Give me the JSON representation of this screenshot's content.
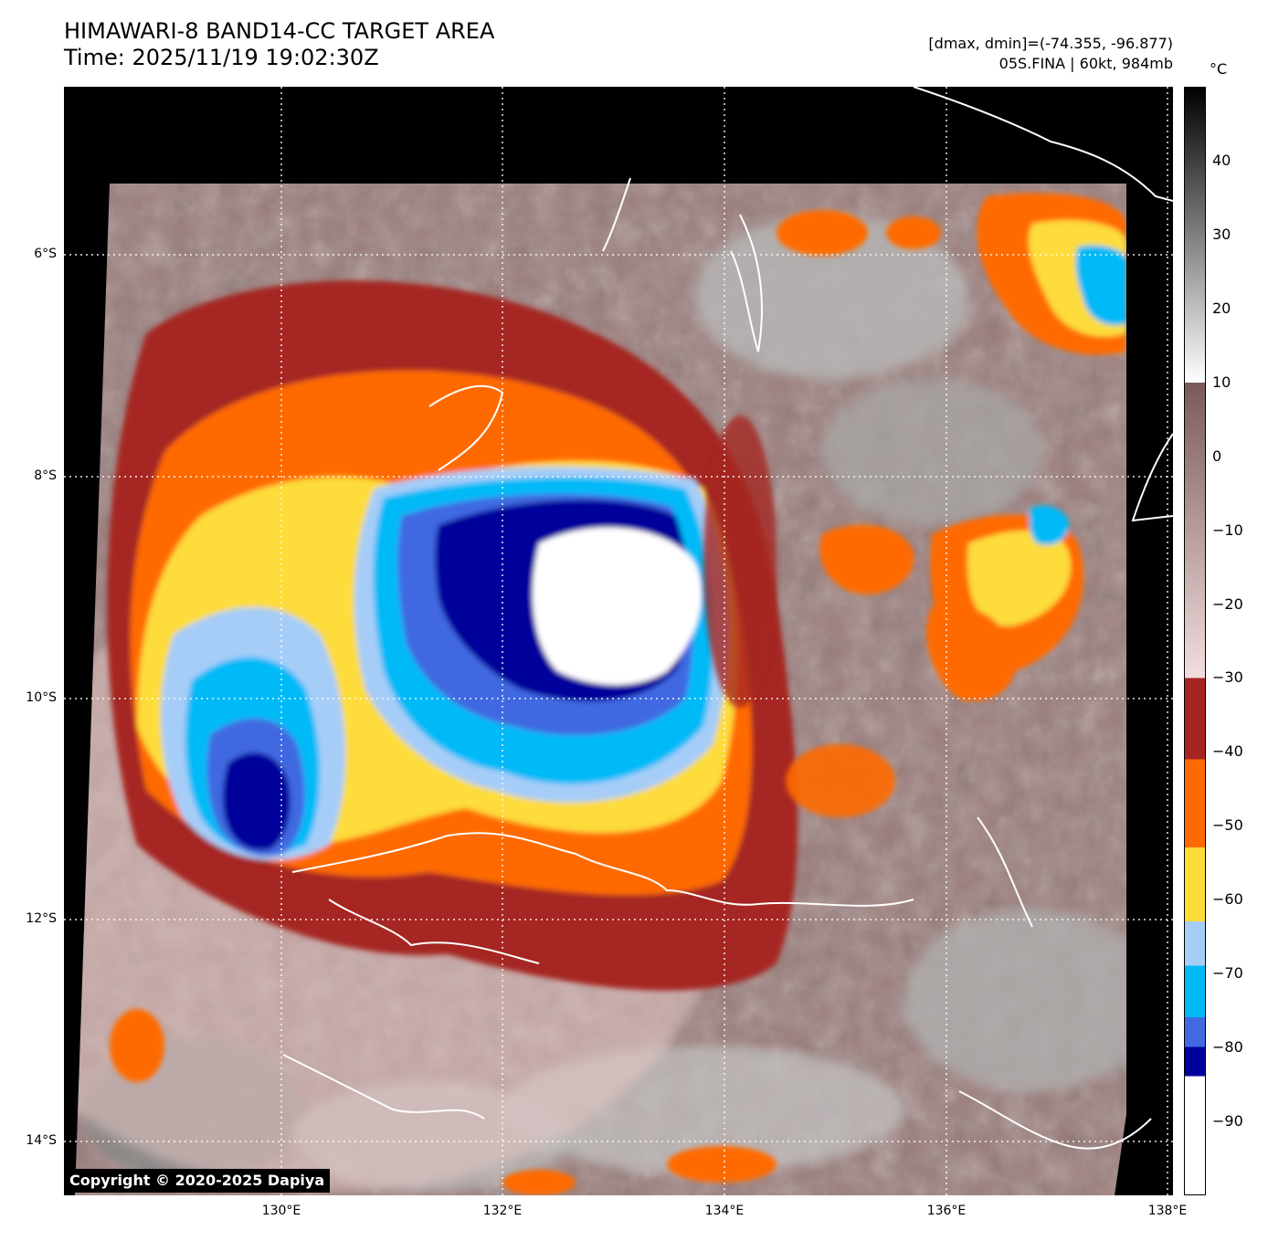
{
  "title_line1": "HIMAWARI-8 BAND14-CC TARGET AREA",
  "title_line2": "Time: 2025/11/19 19:02:30Z",
  "meta_line1": "[dmax, dmin]=(-74.355, -96.877)",
  "meta_line2": "05S.FINA | 60kt, 984mb",
  "colorbar_unit": "°C",
  "colorbar_ticks": [
    "40",
    "30",
    "20",
    "10",
    "0",
    "−10",
    "−20",
    "−30",
    "−40",
    "−50",
    "−60",
    "−70",
    "−80",
    "−90"
  ],
  "colorbar_values": [
    40,
    30,
    20,
    10,
    0,
    -10,
    -20,
    -30,
    -40,
    -50,
    -60,
    -70,
    -80,
    -90
  ],
  "colorbar_range": [
    -100,
    50
  ],
  "colorbar_bands": [
    {
      "from": 50,
      "to": 10,
      "kind": "gray"
    },
    {
      "from": 10,
      "to": -30,
      "kind": "brown-pink"
    },
    {
      "from": -30,
      "to": -41,
      "color": "#a52522"
    },
    {
      "from": -41,
      "to": -53,
      "color": "#ff6a00"
    },
    {
      "from": -53,
      "to": -63,
      "color": "#fddc3a"
    },
    {
      "from": -63,
      "to": -69,
      "color": "#a6cdf8"
    },
    {
      "from": -69,
      "to": -76,
      "color": "#00baf7"
    },
    {
      "from": -76,
      "to": -80,
      "color": "#4169e1"
    },
    {
      "from": -80,
      "to": -84,
      "color": "#00009a"
    },
    {
      "from": -84,
      "to": -100,
      "color": "#ffffff"
    }
  ],
  "lat_labels": [
    "6°S",
    "8°S",
    "10°S",
    "12°S",
    "14°S"
  ],
  "lon_labels": [
    "130°E",
    "132°E",
    "134°E",
    "136°E",
    "138°E"
  ],
  "extent": {
    "lon_min": 128.05,
    "lon_max": 138.0,
    "lat_min": -14.5,
    "lat_max": -4.5
  },
  "copyright": "Copyright © 2020-2025 Dapiya"
}
